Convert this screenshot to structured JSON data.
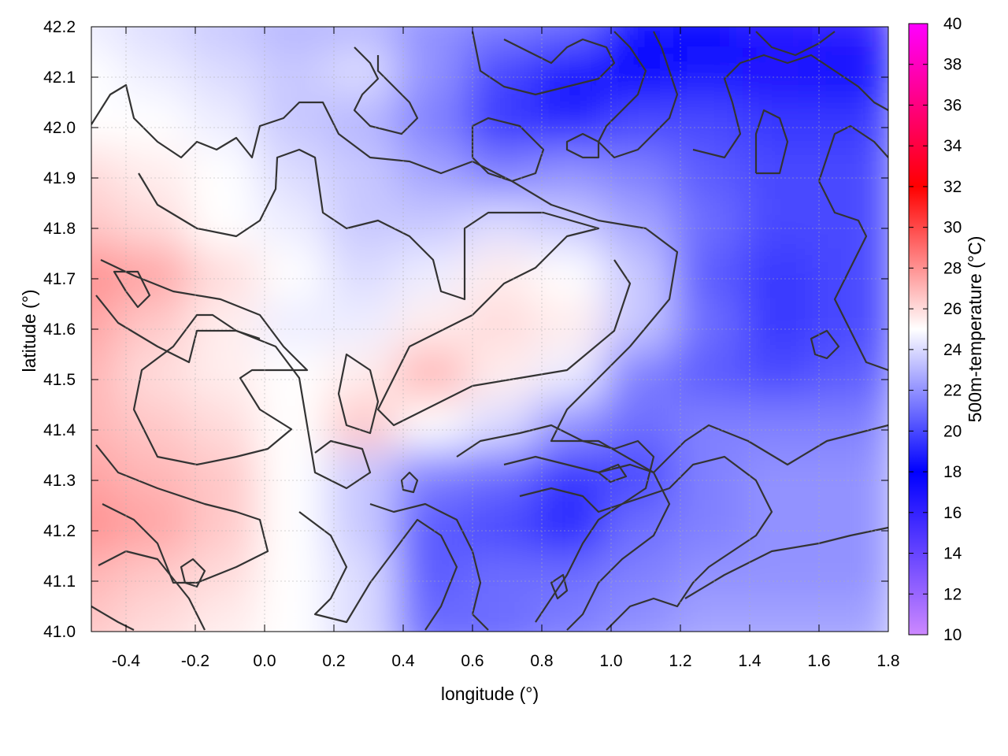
{
  "chart_data": {
    "type": "heatmap",
    "title": "",
    "xlabel": "longitude (°)",
    "ylabel": "latitude (°)",
    "colorbar_label": "500m-temperature (°C)",
    "xlim": [
      -0.5,
      1.8
    ],
    "ylim": [
      41.0,
      42.2
    ],
    "clim": [
      10,
      40
    ],
    "x_ticks": [
      -0.4,
      -0.2,
      0.0,
      0.2,
      0.4,
      0.6,
      0.8,
      1.0,
      1.2,
      1.4,
      1.6,
      1.8
    ],
    "x_tick_labels": [
      "-0.4",
      "-0.2",
      "0.0",
      "0.2",
      "0.4",
      "0.6",
      "0.8",
      "1.0",
      "1.2",
      "1.4",
      "1.6",
      "1.8"
    ],
    "y_ticks": [
      41.0,
      41.1,
      41.2,
      41.3,
      41.4,
      41.5,
      41.6,
      41.7,
      41.8,
      41.9,
      42.0,
      42.1,
      42.2
    ],
    "y_tick_labels": [
      "41.0",
      "41.1",
      "41.2",
      "41.3",
      "41.4",
      "41.5",
      "41.6",
      "41.7",
      "41.8",
      "41.9",
      "42.0",
      "42.1",
      "42.2"
    ],
    "colorbar_ticks": [
      10,
      12,
      14,
      16,
      18,
      20,
      22,
      24,
      26,
      28,
      30,
      32,
      34,
      36,
      38,
      40
    ],
    "colorbar_tick_labels": [
      "10",
      "12",
      "14",
      "16",
      "18",
      "20",
      "22",
      "24",
      "26",
      "28",
      "30",
      "32",
      "34",
      "36",
      "38",
      "40"
    ],
    "colormap": [
      {
        "value": 10,
        "color": "#cc88ff"
      },
      {
        "value": 18,
        "color": "#0000ff"
      },
      {
        "value": 25,
        "color": "#ffffff"
      },
      {
        "value": 32,
        "color": "#ff0000"
      },
      {
        "value": 40,
        "color": "#ff00ff"
      }
    ],
    "grid": true,
    "contours": true,
    "field_samples": {
      "lon": [
        -0.5,
        -0.3,
        -0.1,
        0.1,
        0.3,
        0.5,
        0.7,
        0.9,
        1.1,
        1.3,
        1.5,
        1.7
      ],
      "lat": [
        42.2,
        42.1,
        42.0,
        41.9,
        41.8,
        41.7,
        41.6,
        41.5,
        41.4,
        41.3,
        41.2,
        41.1,
        41.0
      ],
      "values": [
        [
          24.5,
          24.0,
          23.5,
          23.0,
          23.0,
          22.0,
          21.5,
          21.0,
          18.5,
          17.5,
          16.5,
          16.0
        ],
        [
          25.0,
          24.5,
          24.0,
          23.5,
          24.0,
          22.0,
          20.0,
          18.5,
          18.0,
          18.5,
          17.0,
          17.5
        ],
        [
          25.0,
          25.0,
          24.5,
          23.5,
          23.0,
          21.5,
          19.5,
          19.0,
          20.0,
          20.0,
          19.5,
          19.5
        ],
        [
          26.0,
          25.5,
          25.0,
          24.0,
          23.5,
          22.5,
          21.5,
          22.0,
          21.5,
          20.5,
          20.0,
          20.0
        ],
        [
          26.5,
          26.0,
          25.0,
          24.5,
          23.5,
          23.5,
          24.0,
          23.5,
          22.5,
          21.0,
          20.0,
          20.0
        ],
        [
          28.0,
          27.5,
          26.0,
          25.0,
          24.0,
          24.5,
          25.5,
          25.0,
          23.5,
          20.5,
          19.5,
          20.0
        ],
        [
          27.5,
          26.5,
          25.5,
          24.5,
          24.5,
          25.5,
          26.0,
          25.5,
          23.5,
          21.0,
          19.5,
          20.0
        ],
        [
          27.0,
          26.0,
          25.5,
          25.0,
          25.5,
          27.0,
          25.5,
          24.5,
          21.5,
          20.5,
          20.0,
          20.5
        ],
        [
          27.0,
          26.5,
          26.0,
          25.0,
          26.5,
          25.0,
          24.0,
          22.0,
          21.0,
          21.5,
          21.5,
          21.5
        ],
        [
          27.5,
          27.0,
          26.5,
          25.0,
          23.5,
          21.5,
          21.0,
          19.5,
          20.0,
          21.5,
          22.0,
          22.0
        ],
        [
          28.0,
          27.5,
          26.5,
          25.0,
          23.5,
          20.5,
          20.0,
          19.0,
          21.0,
          21.5,
          22.0,
          22.0
        ],
        [
          27.0,
          26.5,
          26.0,
          25.0,
          24.0,
          20.5,
          21.0,
          21.0,
          21.5,
          22.0,
          22.0,
          22.0
        ],
        [
          26.5,
          26.0,
          25.5,
          25.0,
          24.0,
          21.0,
          21.0,
          21.5,
          22.0,
          22.5,
          22.5,
          22.5
        ]
      ]
    }
  }
}
